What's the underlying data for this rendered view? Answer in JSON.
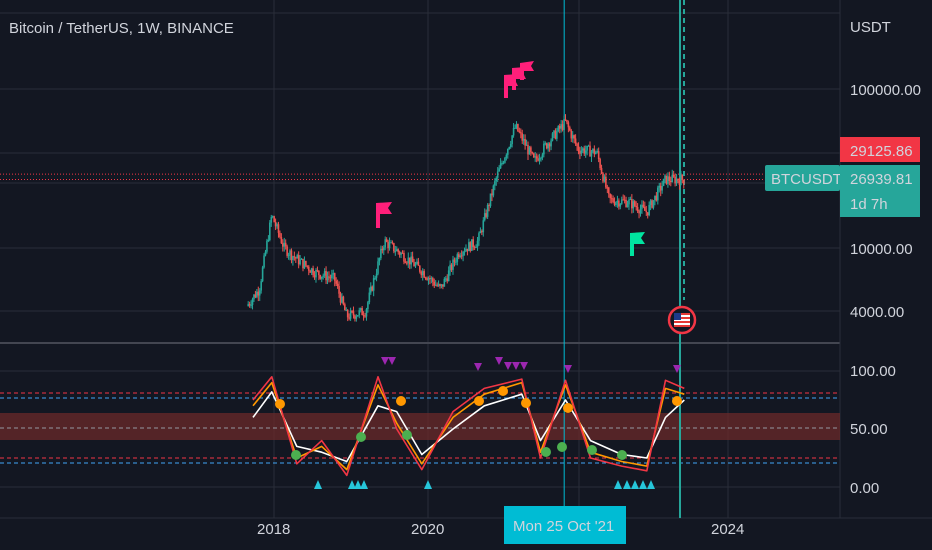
{
  "header": {
    "title": "Bitcoin / TetherUS, 1W, BINANCE"
  },
  "price_axis": {
    "currency": "USDT",
    "ticks": [
      "100000.00",
      "10000.00",
      "4000.00"
    ],
    "marker_price": "29125.86",
    "marker_price_color": "#f23645",
    "current_symbol": "BTCUSDT",
    "current_price": "26939.81",
    "countdown": "1d 7h",
    "current_color": "#26a69a"
  },
  "osc_axis": {
    "ticks": [
      "100.00",
      "50.00",
      "0.00"
    ]
  },
  "time_axis": {
    "ticks": [
      "2018",
      "2020",
      "2024"
    ],
    "crosshair_label": "Mon 25 Oct '21",
    "crosshair_color": "#00bcd4"
  },
  "chart_data": [
    {
      "type": "line",
      "title": "Bitcoin / TetherUS, 1W, BINANCE",
      "y_scale": "log",
      "y_ticks": [
        100000,
        10000,
        4000
      ],
      "x_ticks": [
        "2018",
        "2020",
        "2024"
      ],
      "series": [
        {
          "values": [
            {
              "x": "2017-08",
              "y": 4300
            },
            {
              "x": "2017-10",
              "y": 5500
            },
            {
              "x": "2017-12",
              "y": 16000
            },
            {
              "x": "2018-02",
              "y": 10000
            },
            {
              "x": "2018-04",
              "y": 8500
            },
            {
              "x": "2018-07",
              "y": 7000
            },
            {
              "x": "2018-10",
              "y": 6400
            },
            {
              "x": "2018-12",
              "y": 3700
            },
            {
              "x": "2019-03",
              "y": 4000
            },
            {
              "x": "2019-06",
              "y": 11000
            },
            {
              "x": "2019-09",
              "y": 9000
            },
            {
              "x": "2019-12",
              "y": 7200
            },
            {
              "x": "2020-03",
              "y": 5500
            },
            {
              "x": "2020-06",
              "y": 9500
            },
            {
              "x": "2020-09",
              "y": 11000
            },
            {
              "x": "2020-12",
              "y": 28000
            },
            {
              "x": "2021-03",
              "y": 58000
            },
            {
              "x": "2021-06",
              "y": 35000
            },
            {
              "x": "2021-08",
              "y": 45000
            },
            {
              "x": "2021-11",
              "y": 62000
            },
            {
              "x": "2022-01",
              "y": 42000
            },
            {
              "x": "2022-04",
              "y": 40000
            },
            {
              "x": "2022-06",
              "y": 20000
            },
            {
              "x": "2022-09",
              "y": 19500
            },
            {
              "x": "2022-12",
              "y": 16800
            },
            {
              "x": "2023-03",
              "y": 27000
            },
            {
              "x": "2023-06",
              "y": 26940
            }
          ]
        }
      ],
      "reference_lines": [
        29125.86,
        26939.81
      ],
      "crosshair_x": "2021-10-25"
    },
    {
      "type": "line",
      "ylim": [
        0,
        100
      ],
      "y_ticks": [
        100,
        50,
        0
      ],
      "bands": [
        {
          "from": 38,
          "to": 62,
          "color": "#f23645"
        }
      ],
      "dashed_levels": [
        18,
        25,
        75,
        82
      ],
      "series": [
        {
          "color": "#ffffff",
          "values": [
            {
              "x": "2017-09",
              "y": 60
            },
            {
              "x": "2017-12",
              "y": 82
            },
            {
              "x": "2018-04",
              "y": 35
            },
            {
              "x": "2018-08",
              "y": 30
            },
            {
              "x": "2018-12",
              "y": 22
            },
            {
              "x": "2019-05",
              "y": 70
            },
            {
              "x": "2019-08",
              "y": 65
            },
            {
              "x": "2019-12",
              "y": 28
            },
            {
              "x": "2020-05",
              "y": 50
            },
            {
              "x": "2020-10",
              "y": 70
            },
            {
              "x": "2021-04",
              "y": 80
            },
            {
              "x": "2021-07",
              "y": 40
            },
            {
              "x": "2021-11",
              "y": 75
            },
            {
              "x": "2022-03",
              "y": 40
            },
            {
              "x": "2022-08",
              "y": 28
            },
            {
              "x": "2022-12",
              "y": 25
            },
            {
              "x": "2023-03",
              "y": 60
            },
            {
              "x": "2023-06",
              "y": 75
            }
          ]
        },
        {
          "color": "#ff9800",
          "values": [
            {
              "x": "2017-09",
              "y": 70
            },
            {
              "x": "2017-12",
              "y": 90
            },
            {
              "x": "2018-04",
              "y": 25
            },
            {
              "x": "2018-08",
              "y": 35
            },
            {
              "x": "2018-12",
              "y": 15
            },
            {
              "x": "2019-05",
              "y": 88
            },
            {
              "x": "2019-08",
              "y": 55
            },
            {
              "x": "2019-12",
              "y": 20
            },
            {
              "x": "2020-05",
              "y": 60
            },
            {
              "x": "2020-10",
              "y": 80
            },
            {
              "x": "2021-04",
              "y": 90
            },
            {
              "x": "2021-07",
              "y": 30
            },
            {
              "x": "2021-11",
              "y": 88
            },
            {
              "x": "2022-03",
              "y": 30
            },
            {
              "x": "2022-08",
              "y": 22
            },
            {
              "x": "2022-12",
              "y": 18
            },
            {
              "x": "2023-03",
              "y": 85
            },
            {
              "x": "2023-06",
              "y": 80
            }
          ]
        },
        {
          "color": "#f23645",
          "values": [
            {
              "x": "2017-09",
              "y": 75
            },
            {
              "x": "2017-12",
              "y": 95
            },
            {
              "x": "2018-04",
              "y": 20
            },
            {
              "x": "2018-08",
              "y": 40
            },
            {
              "x": "2018-12",
              "y": 10
            },
            {
              "x": "2019-05",
              "y": 95
            },
            {
              "x": "2019-08",
              "y": 50
            },
            {
              "x": "2019-12",
              "y": 15
            },
            {
              "x": "2020-05",
              "y": 65
            },
            {
              "x": "2020-10",
              "y": 85
            },
            {
              "x": "2021-04",
              "y": 93
            },
            {
              "x": "2021-07",
              "y": 25
            },
            {
              "x": "2021-11",
              "y": 92
            },
            {
              "x": "2022-03",
              "y": 25
            },
            {
              "x": "2022-08",
              "y": 18
            },
            {
              "x": "2022-12",
              "y": 14
            },
            {
              "x": "2023-03",
              "y": 92
            },
            {
              "x": "2023-06",
              "y": 85
            }
          ]
        }
      ]
    }
  ]
}
